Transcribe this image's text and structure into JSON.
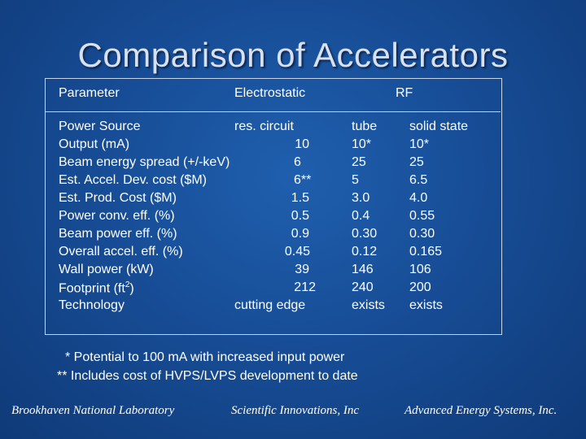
{
  "title": "Comparison of Accelerators",
  "headers": {
    "parameter": "Parameter",
    "electrostatic": "Electrostatic",
    "rf": "RF"
  },
  "rows": [
    {
      "param": "Power Source",
      "es": "res. circuit",
      "tube": "tube",
      "ss": "solid state"
    },
    {
      "param": "Output (mA)",
      "es": "10",
      "tube": "10*",
      "ss": "10*"
    },
    {
      "param": "Beam energy spread (+/-keV)",
      "es": "6",
      "tube": "25",
      "ss": "25"
    },
    {
      "param": "Est. Accel. Dev. cost ($M)",
      "es": "6**",
      "tube": "5",
      "ss": "6.5"
    },
    {
      "param": "Est. Prod. Cost ($M)",
      "es": "1.5",
      "tube": "3.0",
      "ss": "4.0"
    },
    {
      "param": "Power conv. eff. (%)",
      "es": "0.5",
      "tube": "0.4",
      "ss": "0.55"
    },
    {
      "param": "Beam power eff. (%)",
      "es": "0.9",
      "tube": "0.30",
      "ss": "0.30"
    },
    {
      "param": "Overall accel. eff. (%)",
      "es": "0.45",
      "tube": "0.12",
      "ss": "0.165"
    },
    {
      "param": "Wall power (kW)",
      "es": "39",
      "tube": "146",
      "ss": "106"
    },
    {
      "param": "Footprint (ft",
      "param_sup": "2",
      "param_tail": ")",
      "es": "212",
      "tube": "240",
      "ss": "200"
    },
    {
      "param": "Technology",
      "es": "cutting edge",
      "tube": "exists",
      "ss": "exists"
    }
  ],
  "notes": {
    "note1": "* Potential to 100 mA with increased input power",
    "note2": "** Includes cost of HVPS/LVPS development to date"
  },
  "footer": {
    "left": "Brookhaven National Laboratory",
    "center": "Scientific Innovations, Inc",
    "right": "Advanced Energy Systems, Inc."
  }
}
